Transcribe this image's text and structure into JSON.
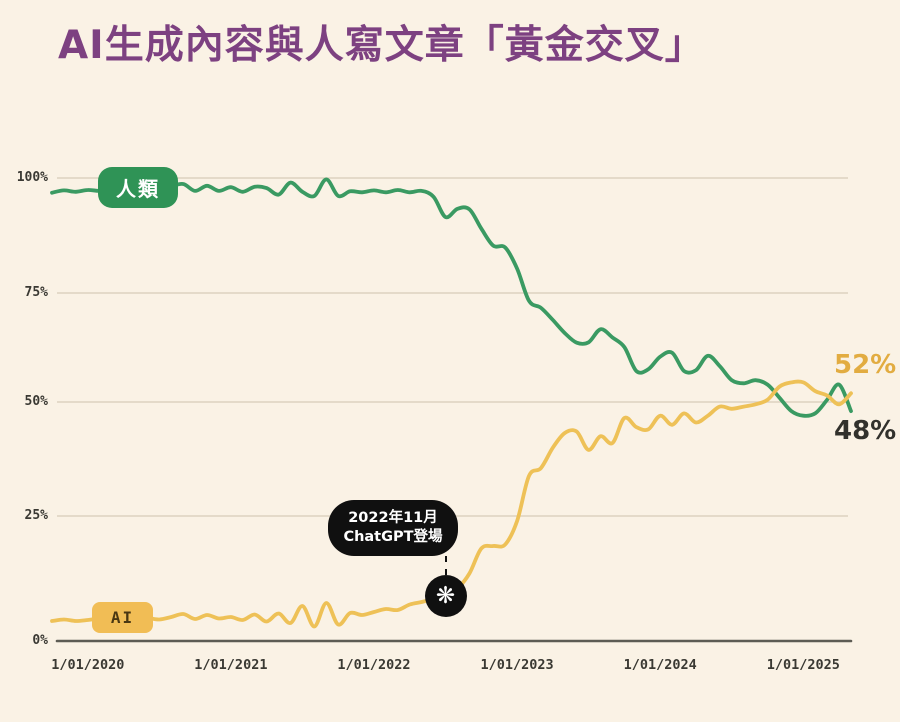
{
  "page": {
    "background": "#faf2e5"
  },
  "title": {
    "text": "AI生成內容與人寫文章「黃金交叉」",
    "color": "#7d4181"
  },
  "chart_data": {
    "type": "line",
    "title": "AI生成內容與人寫文章「黃金交叉」",
    "xlabel": "",
    "ylabel": "",
    "ylim": [
      0,
      100
    ],
    "grid": "horizontal",
    "legend_position": "on-line-badges",
    "start_month": "2019-10",
    "months_count": 68,
    "x_tick_labels": [
      "1/01/2020",
      "1/01/2021",
      "1/01/2022",
      "1/01/2023",
      "1/01/2024",
      "1/01/2025"
    ],
    "x_tick_month_indices": [
      3,
      15,
      27,
      39,
      51,
      63
    ],
    "y_tick_labels": [
      "0%",
      "25%",
      "50%",
      "75%",
      "100%"
    ],
    "y_tick_values": [
      0,
      25,
      50,
      75,
      100
    ],
    "series": [
      {
        "name": "人類",
        "color": "#3a9a62",
        "badge_bg": "#2f9356",
        "badge_text_color": "#ffffff",
        "end_label": "48%",
        "values": [
          96.8,
          97.3,
          97.0,
          97.4,
          97.2,
          97.6,
          97.3,
          97.5,
          97.2,
          97.6,
          98.2,
          98.7,
          97.2,
          98.3,
          97.2,
          98.0,
          97.0,
          98.1,
          97.8,
          96.4,
          99.0,
          97.0,
          96.1,
          99.7,
          96.1,
          97.1,
          96.9,
          97.3,
          96.9,
          97.4,
          96.9,
          97.2,
          95.9,
          91.5,
          93.3,
          93.2,
          89.0,
          85.3,
          84.9,
          80.3,
          73.2,
          71.6,
          68.8,
          65.8,
          63.6,
          63.7,
          66.7,
          64.8,
          62.6,
          57.1,
          57.5,
          60.4,
          61.3,
          57.1,
          57.3,
          60.6,
          58.2,
          55.0,
          54.3,
          55.0,
          54.0,
          51.0,
          48.0,
          47.0,
          47.5,
          50.5,
          54.0,
          48.0
        ]
      },
      {
        "name": "AI",
        "color": "#eec157",
        "badge_bg": "#f1bd55",
        "badge_text_color": "#4a3712",
        "end_label": "52%",
        "values": [
          4.0,
          4.3,
          4.0,
          4.2,
          4.5,
          4.3,
          4.6,
          4.4,
          4.6,
          4.3,
          4.8,
          5.4,
          4.4,
          5.2,
          4.5,
          4.8,
          4.2,
          5.3,
          3.9,
          5.5,
          3.6,
          7.0,
          2.9,
          7.6,
          3.3,
          5.6,
          5.2,
          5.8,
          6.4,
          6.2,
          7.3,
          7.8,
          8.4,
          9.0,
          10.5,
          13.5,
          18.5,
          19.0,
          19.3,
          24.0,
          33.8,
          35.5,
          40.0,
          43.2,
          43.5,
          39.5,
          42.5,
          41.0,
          46.5,
          44.5,
          44.0,
          47.0,
          45.0,
          47.5,
          45.5,
          47.0,
          49.0,
          48.5,
          49.0,
          49.5,
          50.5,
          53.5,
          54.5,
          54.5,
          52.5,
          51.5,
          49.5,
          52.0
        ]
      }
    ],
    "annotation": {
      "line1": "2022年11月",
      "line2": "ChatGPT登場",
      "icon": "openai-logo",
      "icon_glyph": "❋",
      "month_index": 33,
      "value": 9.0
    }
  }
}
